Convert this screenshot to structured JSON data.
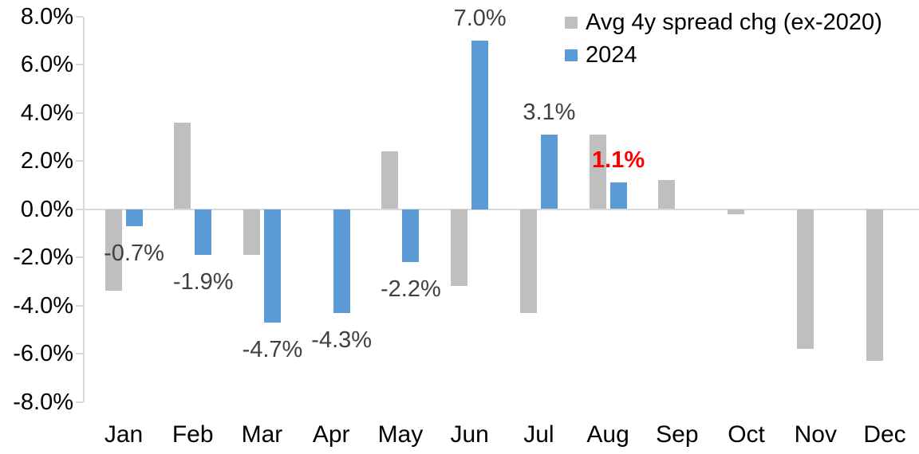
{
  "chart_data": {
    "type": "bar",
    "title": "",
    "xlabel": "",
    "ylabel": "",
    "categories": [
      "Jan",
      "Feb",
      "Mar",
      "Apr",
      "May",
      "Jun",
      "Jul",
      "Aug",
      "Sep",
      "Oct",
      "Nov",
      "Dec"
    ],
    "series": [
      {
        "name": "Avg 4y spread chg (ex-2020)",
        "color": "#BFBFBF",
        "values": [
          -3.4,
          3.6,
          -1.9,
          0.0,
          2.4,
          -3.2,
          -4.3,
          3.1,
          1.2,
          -0.2,
          -5.8,
          -6.3
        ]
      },
      {
        "name": "2024",
        "color": "#5B9BD5",
        "values": [
          -0.7,
          -1.9,
          -4.7,
          -4.3,
          -2.2,
          7.0,
          3.1,
          1.1,
          null,
          null,
          null,
          null
        ],
        "labels": [
          {
            "text": "-0.7%",
            "color": "#404040",
            "bold": false
          },
          {
            "text": "-1.9%",
            "color": "#404040",
            "bold": false
          },
          {
            "text": "-4.7%",
            "color": "#404040",
            "bold": false
          },
          {
            "text": "-4.3%",
            "color": "#404040",
            "bold": false
          },
          {
            "text": "-2.2%",
            "color": "#404040",
            "bold": false
          },
          {
            "text": "7.0%",
            "color": "#404040",
            "bold": false
          },
          {
            "text": "3.1%",
            "color": "#404040",
            "bold": false
          },
          {
            "text": "1.1%",
            "color": "#FF0000",
            "bold": true
          },
          null,
          null,
          null,
          null
        ]
      }
    ],
    "ylim": [
      -8,
      8
    ],
    "ytick_step": 2,
    "ytick_labels": [
      "8.0%",
      "6.0%",
      "4.0%",
      "2.0%",
      "0.0%",
      "-2.0%",
      "-4.0%",
      "-6.0%",
      "-8.0%"
    ],
    "grid": false,
    "legend_position": "top-right",
    "axis_color": "#D9D9D9",
    "background": "#FFFFFF"
  }
}
